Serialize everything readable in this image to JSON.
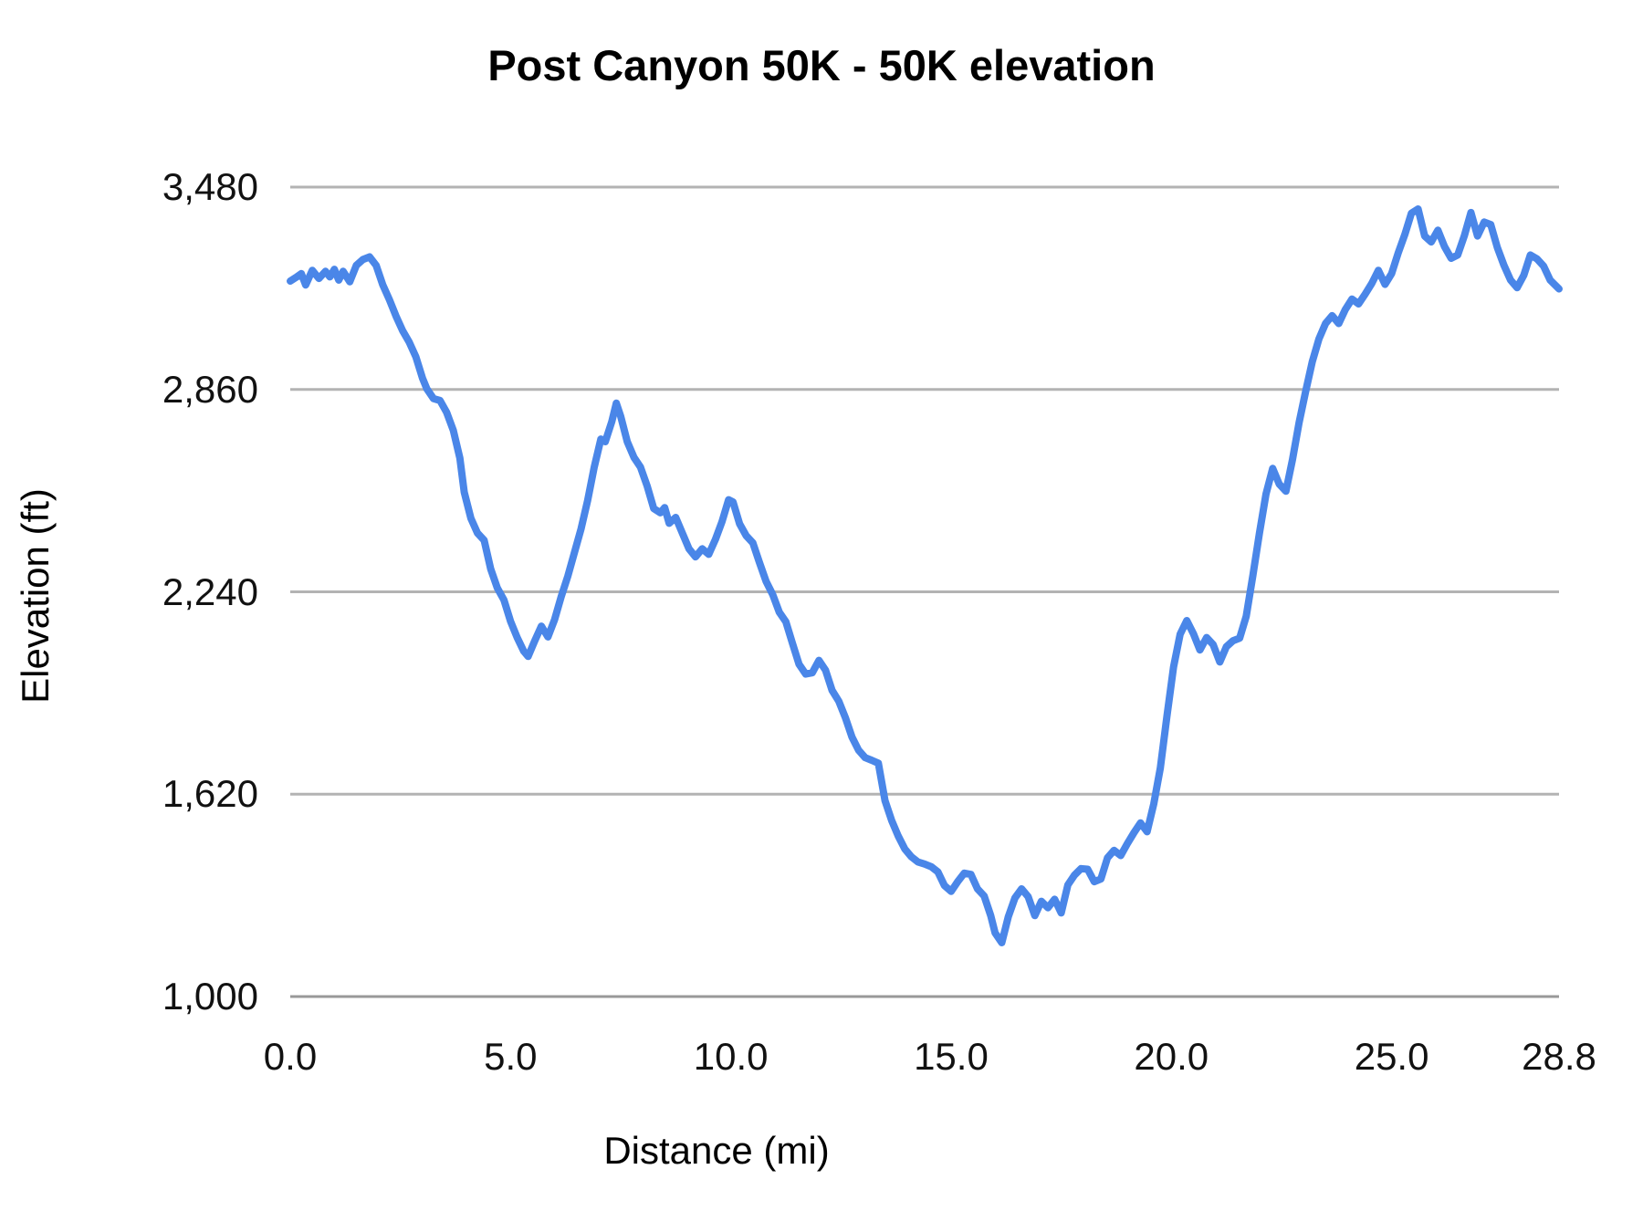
{
  "chart": {
    "title": "Post Canyon 50K - 50K elevation",
    "x_axis_title": "Distance (mi)",
    "y_axis_title": "Elevation (ft)"
  },
  "colors": {
    "line": "#4a86e8",
    "gridline": "#b3b3b3",
    "baseline": "#999999",
    "text": "#111111",
    "background": "#ffffff"
  },
  "chart_data": {
    "type": "line",
    "title": "Post Canyon 50K - 50K elevation",
    "xlabel": "Distance (mi)",
    "ylabel": "Elevation (ft)",
    "xlim": [
      0,
      28.8
    ],
    "ylim": [
      1000,
      3480
    ],
    "grid": "horizontal",
    "legend": "none",
    "line_color": "#4a86e8",
    "line_width": 8,
    "x_ticks": [
      0,
      5,
      10,
      15,
      20,
      25,
      28.8
    ],
    "x_tick_labels": [
      "0.0",
      "5.0",
      "10.0",
      "15.0",
      "20.0",
      "25.0",
      "28.8"
    ],
    "y_ticks": [
      1000,
      1620,
      2240,
      2860,
      3480
    ],
    "y_tick_labels": [
      "1,000",
      "1,620",
      "2,240",
      "2,860",
      "3,480"
    ],
    "series": [
      {
        "name": "Elevation (ft)",
        "x": [
          0,
          0.15,
          0.25,
          0.35,
          0.5,
          0.65,
          0.8,
          0.9,
          1.0,
          1.1,
          1.2,
          1.35,
          1.5,
          1.65,
          1.8,
          1.95,
          2.1,
          2.25,
          2.4,
          2.55,
          2.7,
          2.85,
          3.0,
          3.1,
          3.25,
          3.4,
          3.55,
          3.7,
          3.85,
          3.95,
          4.1,
          4.25,
          4.4,
          4.55,
          4.7,
          4.85,
          5.0,
          5.15,
          5.3,
          5.4,
          5.55,
          5.7,
          5.85,
          6.0,
          6.15,
          6.3,
          6.45,
          6.6,
          6.75,
          6.9,
          7.05,
          7.15,
          7.3,
          7.4,
          7.5,
          7.65,
          7.8,
          7.95,
          8.1,
          8.25,
          8.4,
          8.5,
          8.6,
          8.75,
          8.9,
          9.05,
          9.2,
          9.35,
          9.5,
          9.65,
          9.8,
          9.95,
          10.05,
          10.2,
          10.35,
          10.5,
          10.65,
          10.8,
          10.95,
          11.1,
          11.25,
          11.4,
          11.55,
          11.7,
          11.85,
          12.0,
          12.15,
          12.3,
          12.45,
          12.6,
          12.75,
          12.9,
          13.05,
          13.2,
          13.35,
          13.5,
          13.65,
          13.8,
          13.95,
          14.1,
          14.25,
          14.4,
          14.55,
          14.7,
          14.85,
          15.0,
          15.15,
          15.3,
          15.45,
          15.6,
          15.75,
          15.9,
          16.0,
          16.15,
          16.3,
          16.45,
          16.6,
          16.75,
          16.9,
          17.05,
          17.2,
          17.35,
          17.5,
          17.65,
          17.8,
          17.95,
          18.1,
          18.25,
          18.4,
          18.55,
          18.7,
          18.85,
          19.0,
          19.15,
          19.3,
          19.45,
          19.6,
          19.75,
          19.9,
          20.05,
          20.2,
          20.35,
          20.5,
          20.65,
          20.8,
          20.95,
          21.1,
          21.25,
          21.4,
          21.55,
          21.7,
          21.85,
          22.0,
          22.15,
          22.3,
          22.45,
          22.6,
          22.75,
          22.9,
          23.05,
          23.2,
          23.35,
          23.5,
          23.65,
          23.8,
          23.95,
          24.1,
          24.25,
          24.4,
          24.55,
          24.7,
          24.85,
          25.0,
          25.15,
          25.3,
          25.45,
          25.6,
          25.75,
          25.9,
          26.05,
          26.2,
          26.35,
          26.5,
          26.65,
          26.8,
          26.95,
          27.1,
          27.25,
          27.4,
          27.55,
          27.7,
          27.85,
          28.0,
          28.15,
          28.3,
          28.45,
          28.6,
          28.8
        ],
        "y": [
          3192,
          3205,
          3215,
          3180,
          3225,
          3200,
          3222,
          3205,
          3228,
          3195,
          3222,
          3190,
          3240,
          3258,
          3266,
          3240,
          3180,
          3135,
          3085,
          3040,
          3005,
          2960,
          2895,
          2862,
          2832,
          2826,
          2790,
          2735,
          2650,
          2545,
          2465,
          2420,
          2398,
          2310,
          2252,
          2215,
          2150,
          2100,
          2058,
          2042,
          2090,
          2135,
          2102,
          2155,
          2225,
          2288,
          2360,
          2432,
          2520,
          2622,
          2708,
          2700,
          2762,
          2818,
          2778,
          2700,
          2652,
          2622,
          2565,
          2495,
          2482,
          2498,
          2450,
          2468,
          2420,
          2372,
          2347,
          2372,
          2355,
          2400,
          2455,
          2522,
          2515,
          2448,
          2412,
          2390,
          2330,
          2272,
          2232,
          2178,
          2148,
          2082,
          2018,
          1988,
          1992,
          2030,
          2000,
          1938,
          1905,
          1855,
          1795,
          1755,
          1732,
          1724,
          1715,
          1600,
          1540,
          1492,
          1452,
          1428,
          1412,
          1406,
          1398,
          1382,
          1340,
          1322,
          1352,
          1378,
          1374,
          1330,
          1308,
          1248,
          1195,
          1165,
          1245,
          1302,
          1330,
          1306,
          1248,
          1292,
          1272,
          1298,
          1256,
          1342,
          1372,
          1392,
          1390,
          1352,
          1360,
          1425,
          1448,
          1432,
          1468,
          1502,
          1532,
          1505,
          1590,
          1700,
          1860,
          2010,
          2110,
          2152,
          2112,
          2062,
          2100,
          2078,
          2025,
          2072,
          2090,
          2098,
          2165,
          2290,
          2420,
          2540,
          2618,
          2570,
          2548,
          2645,
          2758,
          2855,
          2945,
          3015,
          3062,
          3086,
          3062,
          3105,
          3137,
          3122,
          3152,
          3185,
          3225,
          3182,
          3215,
          3278,
          3335,
          3400,
          3413,
          3330,
          3312,
          3348,
          3298,
          3262,
          3272,
          3330,
          3402,
          3330,
          3373,
          3365,
          3295,
          3240,
          3195,
          3172,
          3210,
          3272,
          3260,
          3238,
          3195,
          3168
        ]
      }
    ]
  }
}
